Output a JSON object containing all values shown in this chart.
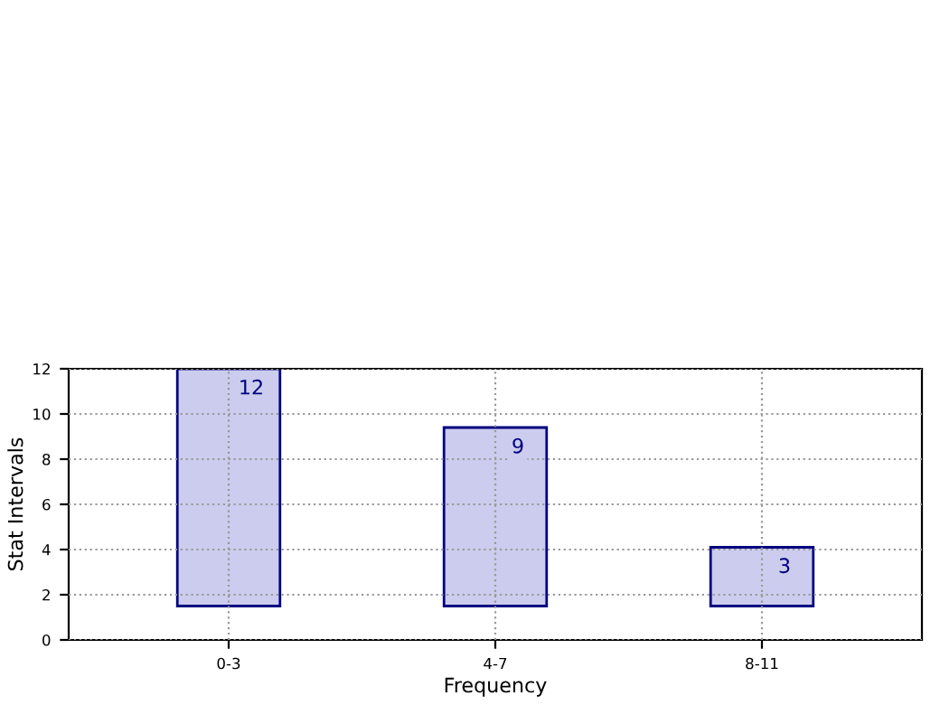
{
  "chart_data": {
    "type": "bar",
    "xlabel": "Frequency",
    "ylabel": "Stat Intervals",
    "categories": [
      "0-3",
      "4-7",
      "8-11"
    ],
    "values": [
      10.5,
      7.9,
      2.6
    ],
    "base": [
      1.5,
      1.5,
      1.5
    ],
    "color": "#ccccee",
    "ylim": [
      0,
      12
    ],
    "yticks": [
      0,
      2,
      4,
      6,
      8,
      10,
      12
    ],
    "grid": true,
    "annotations": [
      {
        "text": "12",
        "x": "0-3",
        "y": 12
      },
      {
        "text": "9",
        "x": "4-7",
        "y": 9.4
      },
      {
        "text": "3",
        "x": "8-11",
        "y": 4.1
      }
    ]
  }
}
